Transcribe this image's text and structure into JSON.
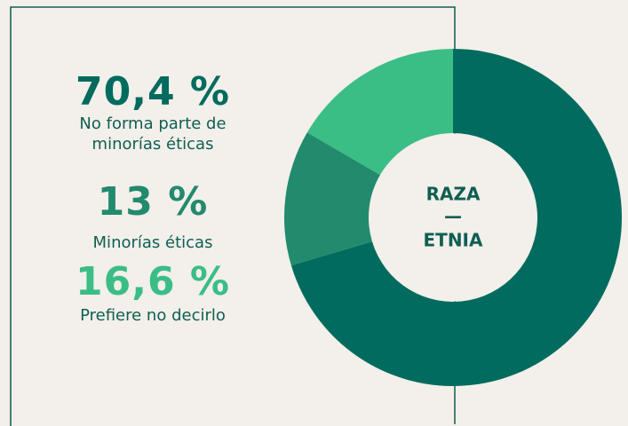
{
  "chart_data": {
    "type": "donut",
    "center_label": [
      "RAZA",
      "—",
      "ETNIA"
    ],
    "categories": [
      "No forma parte de minorías éticas",
      "Minorías éticas",
      "Prefiere no decirlo"
    ],
    "values": [
      70.4,
      13,
      16.6
    ],
    "value_labels": [
      "70,4 %",
      "13 %",
      "16,6 %"
    ],
    "colors": [
      "#006b5e",
      "#228a6d",
      "#3bbd86"
    ]
  }
}
